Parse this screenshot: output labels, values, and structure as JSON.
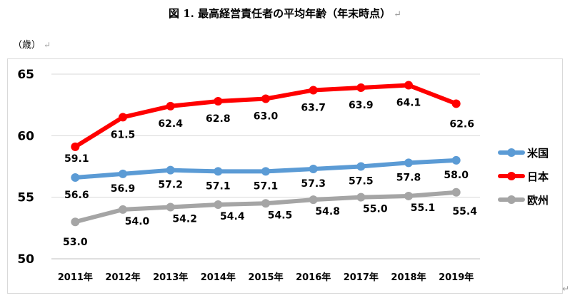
{
  "title": "図 1. 最高経営責任者の平均年齢（年末時点）",
  "paragraph_mark": "↵",
  "unit_label": "（歳）",
  "chart_data": {
    "type": "line",
    "title": "図 1. 最高経営責任者の平均年齢（年末時点）",
    "ylabel": "（歳）",
    "xlabel": "",
    "categories": [
      "2011年",
      "2012年",
      "2013年",
      "2014年",
      "2015年",
      "2016年",
      "2017年",
      "2018年",
      "2019年"
    ],
    "ylim": [
      50,
      65
    ],
    "yticks": [
      50,
      55,
      60,
      65
    ],
    "grid": "horizontal",
    "legend_position": "right",
    "series": [
      {
        "name": "米国",
        "color": "#5b9bd5",
        "values": [
          56.6,
          56.9,
          57.2,
          57.1,
          57.1,
          57.3,
          57.5,
          57.8,
          58.0
        ]
      },
      {
        "name": "日本",
        "color": "#ff0000",
        "values": [
          59.1,
          61.5,
          62.4,
          62.8,
          63.0,
          63.7,
          63.9,
          64.1,
          62.6
        ]
      },
      {
        "name": "欧州",
        "color": "#a5a5a5",
        "values": [
          53.0,
          54.0,
          54.2,
          54.4,
          54.5,
          54.8,
          55.0,
          55.1,
          55.4
        ]
      }
    ]
  }
}
